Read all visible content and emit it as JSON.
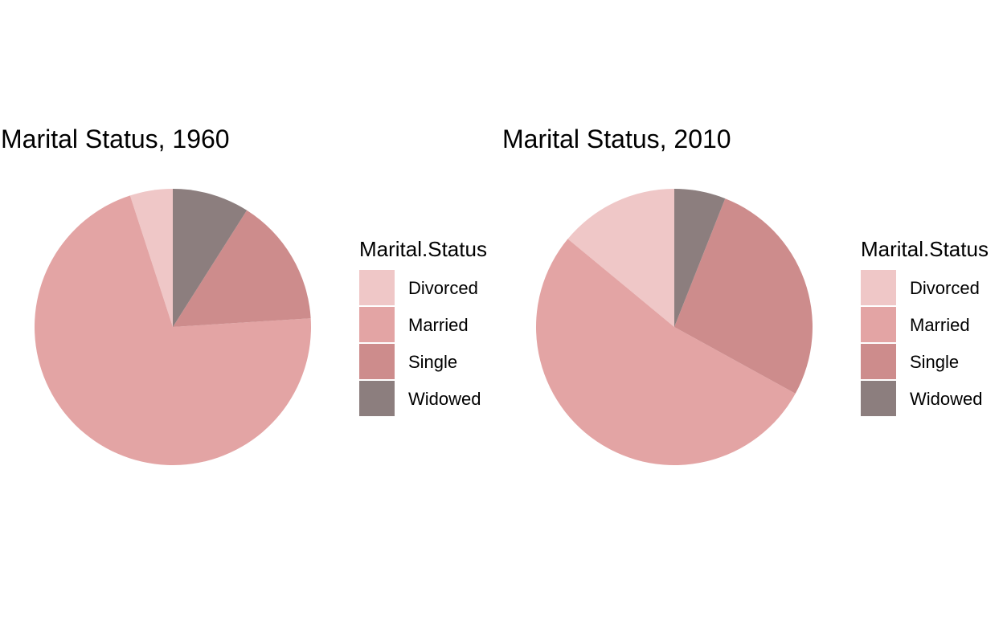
{
  "colors": {
    "Divorced": "#efc7c7",
    "Married": "#e3a4a4",
    "Single": "#cd8c8c",
    "Widowed": "#8c7e7e"
  },
  "chart_data": [
    {
      "type": "pie",
      "title": "Marital Status, 1960",
      "legend_title": "Marital.Status",
      "legend_position": "right",
      "categories": [
        "Divorced",
        "Married",
        "Single",
        "Widowed"
      ],
      "values": [
        5,
        71,
        15,
        9
      ]
    },
    {
      "type": "pie",
      "title": "Marital Status, 2010",
      "legend_title": "Marital.Status",
      "legend_position": "right",
      "categories": [
        "Divorced",
        "Married",
        "Single",
        "Widowed"
      ],
      "values": [
        14,
        53,
        27,
        6
      ]
    }
  ]
}
